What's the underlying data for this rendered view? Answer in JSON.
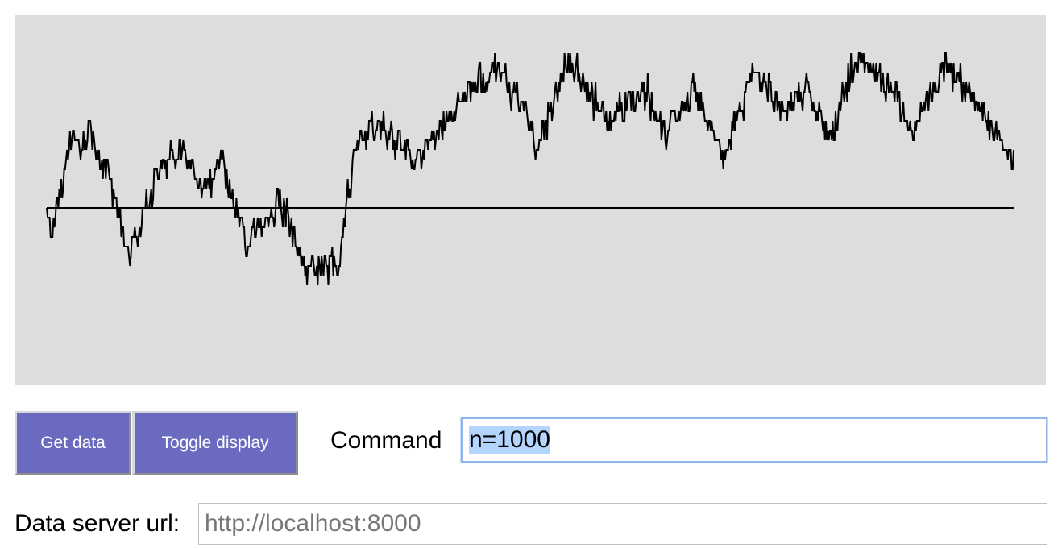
{
  "plot": {
    "background": "#dddddd",
    "line_color": "#000000",
    "baseline": 0
  },
  "chart_data": {
    "type": "line",
    "title": "",
    "xlabel": "",
    "ylabel": "",
    "grid": false,
    "n_points": 1000,
    "ylim": [
      -20,
      20
    ],
    "baseline": 0,
    "x_knots": [
      0,
      4,
      12,
      18,
      27,
      35,
      45,
      63,
      86,
      112,
      140,
      162,
      182,
      207,
      240,
      267,
      302,
      318,
      345,
      380,
      407,
      435,
      465,
      495,
      505,
      540,
      580,
      620,
      640,
      670,
      700,
      730,
      760,
      787,
      810,
      835,
      860,
      877,
      895,
      930,
      965,
      995,
      1000
    ],
    "y_knots": [
      0,
      -3,
      0,
      4,
      8,
      6,
      8,
      3,
      -5,
      3,
      6,
      2,
      5,
      -4,
      1,
      -6,
      -6,
      6,
      9,
      5,
      8,
      12,
      14,
      10,
      6,
      15,
      9,
      12,
      8,
      12,
      5,
      14,
      10,
      12,
      7,
      15,
      14,
      12,
      8,
      15,
      10,
      6,
      4
    ]
  },
  "buttons": {
    "get_data": "Get data",
    "toggle_display": "Toggle display"
  },
  "command": {
    "label": "Command",
    "value": "n=1000"
  },
  "server": {
    "label": "Data server url:",
    "placeholder": "http://localhost:8000"
  }
}
